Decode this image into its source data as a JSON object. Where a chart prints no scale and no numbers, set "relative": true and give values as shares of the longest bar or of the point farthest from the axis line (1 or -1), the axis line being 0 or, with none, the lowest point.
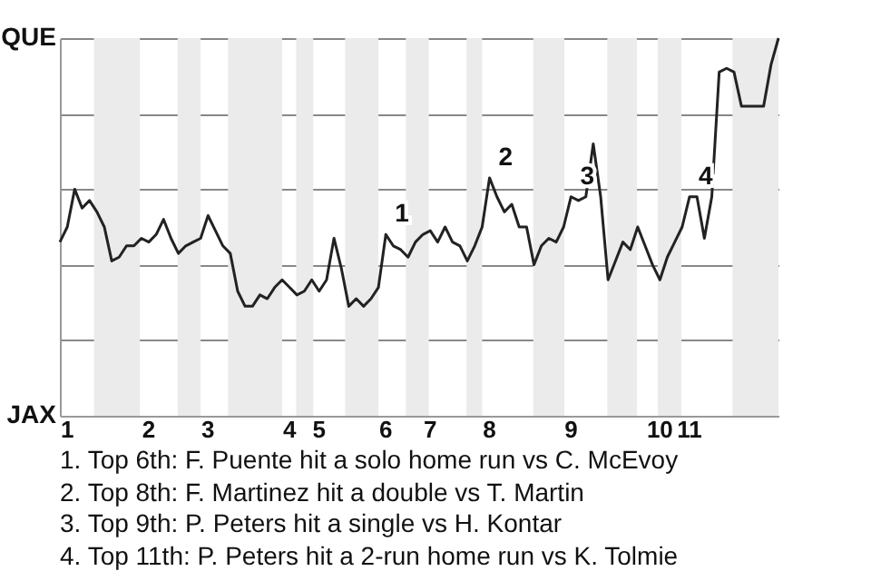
{
  "chart_data": {
    "type": "line",
    "relative": true,
    "categories": [
      null,
      "1",
      null,
      null,
      null,
      null,
      null,
      null,
      null,
      null,
      null,
      null,
      "2",
      null,
      null,
      null,
      null,
      null,
      null,
      null,
      "3",
      null,
      null,
      null,
      null,
      null,
      null,
      null,
      null,
      null,
      null,
      "4",
      null,
      null,
      null,
      "5",
      null,
      null,
      null,
      null,
      null,
      null,
      null,
      null,
      "6",
      null,
      null,
      null,
      null,
      null,
      "7",
      null,
      null,
      null,
      null,
      null,
      null,
      null,
      "8",
      null,
      null,
      null,
      null,
      null,
      null,
      null,
      null,
      null,
      null,
      "9",
      null,
      null,
      null,
      null,
      null,
      null,
      null,
      null,
      null,
      null,
      null,
      "10",
      null,
      null,
      null,
      "11",
      null,
      null,
      null,
      null,
      null,
      null,
      null,
      null,
      null,
      null,
      null,
      null
    ],
    "series": [
      {
        "color": "#222222",
        "values": [
          0.46,
          0.5,
          0.6,
          0.55,
          0.57,
          0.54,
          0.5,
          0.41,
          0.42,
          0.45,
          0.45,
          0.47,
          0.46,
          0.48,
          0.52,
          0.47,
          0.43,
          0.45,
          0.46,
          0.47,
          0.53,
          0.49,
          0.45,
          0.43,
          0.33,
          0.29,
          0.29,
          0.32,
          0.31,
          0.34,
          0.36,
          0.34,
          0.32,
          0.33,
          0.36,
          0.33,
          0.36,
          0.47,
          0.39,
          0.29,
          0.31,
          0.29,
          0.31,
          0.34,
          0.48,
          0.45,
          0.44,
          0.42,
          0.46,
          0.48,
          0.49,
          0.46,
          0.5,
          0.46,
          0.45,
          0.41,
          0.45,
          0.5,
          0.63,
          0.58,
          0.54,
          0.56,
          0.5,
          0.5,
          0.4,
          0.45,
          0.47,
          0.46,
          0.5,
          0.58,
          0.57,
          0.58,
          0.72,
          0.58,
          0.36,
          0.41,
          0.46,
          0.44,
          0.5,
          0.45,
          0.4,
          0.36,
          0.42,
          0.46,
          0.5,
          0.58,
          0.58,
          0.47,
          0.58,
          0.91,
          0.92,
          0.91,
          0.82,
          0.82,
          0.82,
          0.82,
          0.93,
          1
        ],
        "name": null
      }
    ],
    "grid": "y",
    "marker": "none",
    "line_style": "solid",
    "annotations": [
      "QUE",
      "JAX",
      {
        "text": "1",
        "x": "6",
        "y": 0.48
      },
      {
        "text": "2",
        "x": "8",
        "y": 0.63
      },
      {
        "text": "3",
        "x": "9",
        "y": 0.58
      },
      {
        "text": "4",
        "x": "11",
        "y": 0.58
      },
      "1. Top 6th: F. Puente hit a solo home run vs C. McEvoy",
      "2. Top 8th: F. Martinez hit a double vs T. Martin",
      "3. Top 9th: P. Peters hit a single vs H. Kontar",
      "4. Top 11th: P. Peters hit a 2-run home run vs K. Tolmie"
    ]
  }
}
